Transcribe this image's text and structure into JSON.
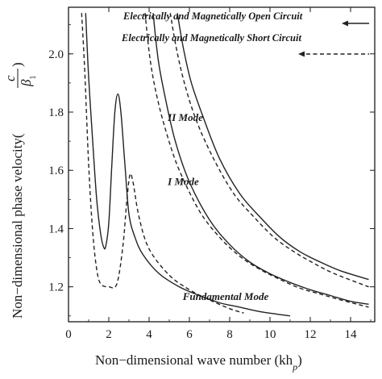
{
  "chart_data": {
    "type": "line",
    "title": "",
    "xlabel": "Non−dimensional wave number (kh",
    "xlabel_sub": "p",
    "xlabel_close": ")",
    "ylabel": "Non−dimensional phase velocity(",
    "ylabel_frac_num": "c",
    "ylabel_frac_den": "β",
    "ylabel_frac_den_sub": "1",
    "ylabel_close": ")",
    "xlim": [
      0,
      15.2
    ],
    "ylim": [
      1.08,
      2.16
    ],
    "x_ticks": [
      0,
      2,
      4,
      6,
      8,
      10,
      12,
      14
    ],
    "x_tick_labels": [
      "0",
      "2",
      "4",
      "6",
      "8",
      "10",
      "12",
      "14"
    ],
    "y_ticks": [
      1.2,
      1.4,
      1.6,
      1.8,
      2.0
    ],
    "y_tick_labels": [
      "1.2",
      "1.4",
      "1.6",
      "1.8",
      "2.0"
    ],
    "grid": false,
    "legend": [
      {
        "label": "Electrically and Magnetically Open Circuit",
        "style": "solid"
      },
      {
        "label": "Electrically and Magnetically Short Circuit",
        "style": "dashed"
      }
    ],
    "mode_labels": [
      {
        "text": "II Mode",
        "x": 5.8,
        "y": 1.77
      },
      {
        "text": "I Mode",
        "x": 5.7,
        "y": 1.55
      },
      {
        "text": "Fundamental Mode",
        "x": 7.8,
        "y": 1.155
      }
    ],
    "series": [
      {
        "mode": "fundamental",
        "style": "solid",
        "points": [
          [
            0.85,
            2.14
          ],
          [
            1.0,
            1.92
          ],
          [
            1.2,
            1.7
          ],
          [
            1.4,
            1.5
          ],
          [
            1.6,
            1.38
          ],
          [
            1.75,
            1.335
          ],
          [
            1.85,
            1.34
          ],
          [
            2.0,
            1.42
          ],
          [
            2.15,
            1.62
          ],
          [
            2.3,
            1.8
          ],
          [
            2.45,
            1.862
          ],
          [
            2.6,
            1.8
          ],
          [
            2.8,
            1.62
          ],
          [
            3.0,
            1.45
          ],
          [
            3.3,
            1.37
          ],
          [
            3.7,
            1.31
          ],
          [
            4.5,
            1.245
          ],
          [
            5.5,
            1.2
          ],
          [
            6.5,
            1.17
          ],
          [
            7.5,
            1.145
          ],
          [
            8.5,
            1.13
          ],
          [
            9.5,
            1.115
          ],
          [
            11.0,
            1.1
          ]
        ]
      },
      {
        "mode": "fundamental",
        "style": "dashed",
        "points": [
          [
            0.65,
            2.14
          ],
          [
            0.8,
            1.95
          ],
          [
            1.0,
            1.62
          ],
          [
            1.2,
            1.39
          ],
          [
            1.4,
            1.26
          ],
          [
            1.6,
            1.21
          ],
          [
            2.0,
            1.2
          ],
          [
            2.4,
            1.21
          ],
          [
            2.7,
            1.34
          ],
          [
            2.9,
            1.5
          ],
          [
            3.05,
            1.585
          ],
          [
            3.2,
            1.56
          ],
          [
            3.5,
            1.44
          ],
          [
            4.0,
            1.33
          ],
          [
            5.0,
            1.24
          ],
          [
            6.0,
            1.19
          ],
          [
            7.0,
            1.155
          ],
          [
            8.0,
            1.125
          ],
          [
            8.7,
            1.11
          ]
        ]
      },
      {
        "mode": "I",
        "style": "solid",
        "points": [
          [
            4.2,
            2.14
          ],
          [
            4.45,
            1.98
          ],
          [
            4.8,
            1.85
          ],
          [
            5.3,
            1.7
          ],
          [
            6.0,
            1.56
          ],
          [
            7.0,
            1.43
          ],
          [
            8.0,
            1.345
          ],
          [
            9.0,
            1.285
          ],
          [
            10.0,
            1.245
          ],
          [
            11.0,
            1.215
          ],
          [
            12.0,
            1.19
          ],
          [
            13.0,
            1.17
          ],
          [
            14.0,
            1.15
          ],
          [
            14.9,
            1.14
          ]
        ]
      },
      {
        "mode": "I",
        "style": "dashed",
        "points": [
          [
            3.8,
            2.14
          ],
          [
            4.05,
            1.98
          ],
          [
            4.4,
            1.85
          ],
          [
            4.9,
            1.72
          ],
          [
            5.5,
            1.6
          ],
          [
            6.5,
            1.46
          ],
          [
            7.5,
            1.37
          ],
          [
            8.5,
            1.305
          ],
          [
            9.5,
            1.26
          ],
          [
            10.5,
            1.225
          ],
          [
            11.5,
            1.195
          ],
          [
            12.5,
            1.175
          ],
          [
            13.5,
            1.155
          ],
          [
            14.9,
            1.13
          ]
        ]
      },
      {
        "mode": "II",
        "style": "solid",
        "points": [
          [
            5.4,
            2.14
          ],
          [
            5.7,
            2.02
          ],
          [
            6.1,
            1.9
          ],
          [
            6.7,
            1.78
          ],
          [
            7.5,
            1.64
          ],
          [
            8.5,
            1.52
          ],
          [
            9.5,
            1.44
          ],
          [
            10.5,
            1.37
          ],
          [
            11.5,
            1.32
          ],
          [
            12.5,
            1.285
          ],
          [
            13.5,
            1.255
          ],
          [
            14.9,
            1.225
          ]
        ]
      },
      {
        "mode": "II",
        "style": "dashed",
        "points": [
          [
            5.05,
            2.14
          ],
          [
            5.35,
            2.02
          ],
          [
            5.75,
            1.9
          ],
          [
            6.35,
            1.77
          ],
          [
            7.2,
            1.64
          ],
          [
            8.2,
            1.52
          ],
          [
            9.2,
            1.44
          ],
          [
            10.2,
            1.37
          ],
          [
            11.2,
            1.32
          ],
          [
            12.2,
            1.28
          ],
          [
            13.2,
            1.245
          ],
          [
            14.9,
            1.2
          ]
        ]
      }
    ]
  }
}
